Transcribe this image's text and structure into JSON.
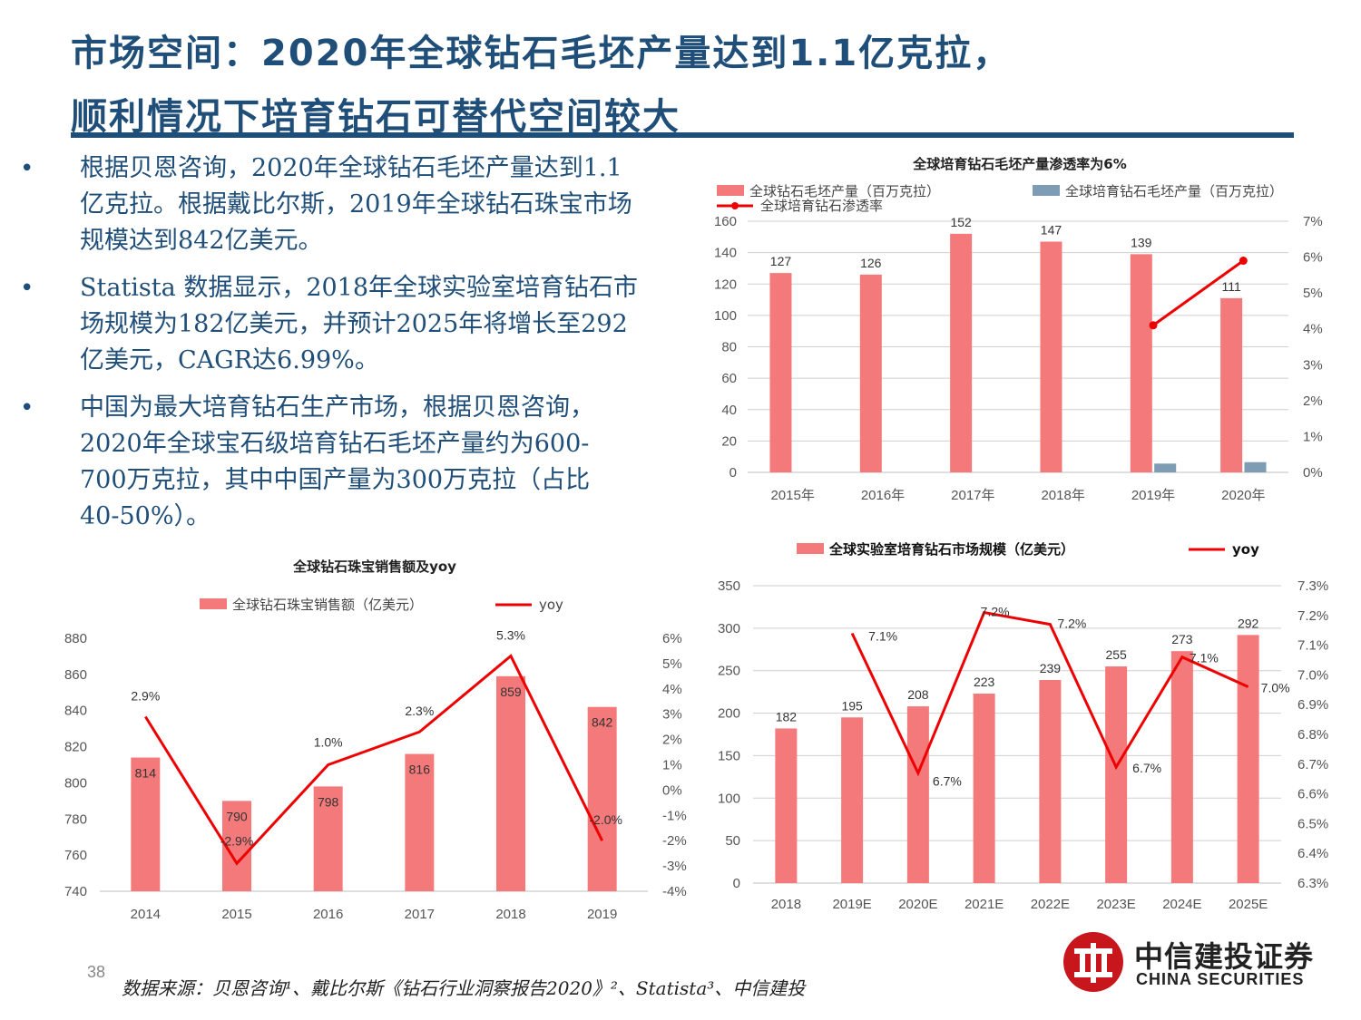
{
  "header": {
    "title_line1": "市场空间：2020年全球钻石毛坯产量达到1.1亿克拉，",
    "title_line2": "顺利情况下培育钻石可替代空间较大"
  },
  "bullets": [
    {
      "text": "根据贝恩咨询，2020年全球钻石毛坯产量达到1.1亿克拉。根据戴比尔斯，2019年全球钻石珠宝市场规模达到842亿美元。"
    },
    {
      "text": "Statista 数据显示，2018年全球实验室培育钻石市场规模为182亿美元，并预计2025年将增长至292亿美元，CAGR达6.99%。"
    },
    {
      "text": "中国为最大培育钻石生产市场，根据贝恩咨询，2020年全球宝石级培育钻石毛坯产量约为600-700万克拉，其中中国产量为300万克拉（占比40-50%）。"
    }
  ],
  "colors": {
    "bar": "#f4797a",
    "bar_blue": "#7f9cb5",
    "line": "#ee0000",
    "navy": "#1f4e79"
  },
  "chart_data": [
    {
      "type": "bar",
      "title": "全球培育钻石毛坯产量渗透率为6%",
      "categories": [
        "2015年",
        "2016年",
        "2017年",
        "2018年",
        "2019年",
        "2020年"
      ],
      "series": [
        {
          "name": "全球钻石毛坯产量（百万克拉）",
          "values": [
            127,
            126,
            152,
            147,
            139,
            111
          ],
          "labels": [
            "127",
            "126",
            "152",
            "147",
            "139",
            "111"
          ]
        },
        {
          "name": "全球培育钻石毛坯产量（百万克拉）",
          "values": [
            null,
            null,
            null,
            null,
            5.6,
            6.5
          ]
        },
        {
          "name": "全球培育钻石渗透率",
          "type": "line",
          "axis": "right",
          "values": [
            null,
            null,
            null,
            null,
            4.1,
            5.9
          ]
        }
      ],
      "ylim": [
        0,
        160
      ],
      "yticks": [
        "0",
        "20",
        "40",
        "60",
        "80",
        "100",
        "120",
        "140",
        "160"
      ],
      "y2lim": [
        0,
        7
      ],
      "y2ticks": [
        "0%",
        "1%",
        "2%",
        "3%",
        "4%",
        "5%",
        "6%",
        "7%"
      ],
      "grid": true,
      "legend": "top"
    },
    {
      "type": "bar",
      "title": "全球钻石珠宝销售额及yoy",
      "categories": [
        "2014",
        "2015",
        "2016",
        "2017",
        "2018",
        "2019"
      ],
      "series": [
        {
          "name": "全球钻石珠宝销售额（亿美元）",
          "values": [
            814,
            790,
            798,
            816,
            859,
            842
          ],
          "labels": [
            "814",
            "790",
            "798",
            "816",
            "859",
            "842"
          ]
        },
        {
          "name": "yoy",
          "type": "line",
          "axis": "right",
          "values": [
            2.9,
            -2.9,
            1.0,
            2.3,
            5.3,
            -2.0
          ],
          "labels": [
            "2.9%",
            "-2.9%",
            "1.0%",
            "2.3%",
            "5.3%",
            "-2.0%"
          ]
        }
      ],
      "ylim": [
        740,
        880
      ],
      "yticks": [
        "740",
        "760",
        "780",
        "800",
        "820",
        "840",
        "860",
        "880"
      ],
      "y2lim": [
        -4,
        6
      ],
      "y2ticks": [
        "-4%",
        "-3%",
        "-2%",
        "-1%",
        "0%",
        "1%",
        "2%",
        "3%",
        "4%",
        "5%",
        "6%"
      ],
      "grid": false,
      "legend": "top"
    },
    {
      "type": "bar",
      "title": "",
      "categories": [
        "2018",
        "2019E",
        "2020E",
        "2021E",
        "2022E",
        "2023E",
        "2024E",
        "2025E"
      ],
      "series": [
        {
          "name": "全球实验室培育钻石市场规模（亿美元）",
          "values": [
            182,
            195,
            208,
            223,
            239,
            255,
            273,
            292
          ],
          "labels": [
            "182",
            "195",
            "208",
            "223",
            "239",
            "255",
            "273",
            "292"
          ]
        },
        {
          "name": "yoy",
          "type": "line",
          "axis": "right",
          "values": [
            null,
            7.14,
            6.67,
            7.21,
            7.17,
            6.69,
            7.06,
            6.96
          ],
          "labels": [
            "",
            "7.1%",
            "6.7%",
            "7.2%",
            "7.2%",
            "6.7%",
            "7.1%",
            "7.0%"
          ]
        }
      ],
      "ylim": [
        0,
        350
      ],
      "yticks": [
        "0",
        "50",
        "100",
        "150",
        "200",
        "250",
        "300",
        "350"
      ],
      "y2lim": [
        6.3,
        7.3
      ],
      "y2ticks": [
        "6.3%",
        "6.4%",
        "6.5%",
        "6.6%",
        "6.7%",
        "6.8%",
        "6.9%",
        "7.0%",
        "7.1%",
        "7.2%",
        "7.3%"
      ],
      "grid": true,
      "legend": "top"
    }
  ],
  "footer": {
    "page_number": "38",
    "source": "数据来源：贝恩咨询¹、戴比尔斯《钻石行业洞察报告2020》²、Statista³、中信建投",
    "logo_cn": "中信建投证券",
    "logo_en": "CHINA SECURITIES"
  }
}
